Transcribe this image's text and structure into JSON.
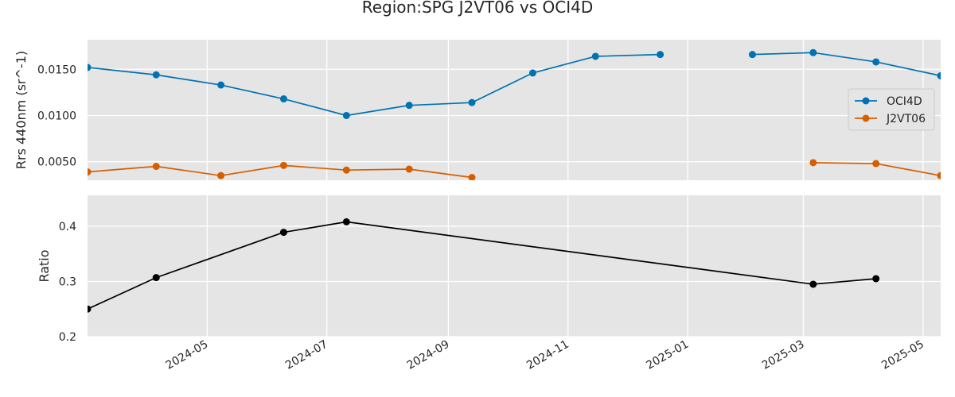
{
  "chart_data": {
    "title": "Region:SPG J2VT06 vs OCI4D",
    "x_ticks": [
      "2024-05",
      "2024-07",
      "2024-09",
      "2024-11",
      "2025-01",
      "2025-03",
      "2025-05"
    ],
    "x_range": [
      "2024-03-01",
      "2025-05-10"
    ],
    "grid": true,
    "panels": [
      {
        "type": "line",
        "ylabel": "Rrs 440nm (sr^-1)",
        "ylim": [
          0.003,
          0.0182
        ],
        "y_ticks": [
          "0.0050",
          "0.0100",
          "0.0150"
        ],
        "y_tick_values": [
          0.005,
          0.01,
          0.015
        ],
        "legend": "right",
        "series": [
          {
            "name": "OCI4D",
            "color": "#0072b2",
            "points": [
              [
                "2024-03-01",
                0.0152
              ],
              [
                "2024-04-05",
                0.0144
              ],
              [
                "2024-05-08",
                0.0133
              ],
              [
                "2024-06-09",
                0.0118
              ],
              [
                "2024-07-11",
                0.01
              ],
              [
                "2024-08-12",
                0.0111
              ],
              [
                "2024-09-13",
                0.0114
              ],
              [
                "2024-10-14",
                0.0146
              ],
              [
                "2024-11-15",
                0.0164
              ],
              [
                "2024-12-18",
                0.0166
              ],
              [
                "2025-01-19",
                null
              ],
              [
                "2025-02-03",
                0.0166
              ],
              [
                "2025-03-06",
                0.0168
              ],
              [
                "2025-04-07",
                0.0158
              ],
              [
                "2025-05-10",
                0.0143
              ]
            ]
          },
          {
            "name": "J2VT06",
            "color": "#d55e00",
            "points": [
              [
                "2024-03-01",
                0.0039
              ],
              [
                "2024-04-05",
                0.0045
              ],
              [
                "2024-05-08",
                0.0035
              ],
              [
                "2024-06-09",
                0.0046
              ],
              [
                "2024-07-11",
                0.0041
              ],
              [
                "2024-08-12",
                0.0042
              ],
              [
                "2024-09-13",
                0.0033
              ],
              [
                "2024-10-14",
                null
              ],
              [
                "2025-03-06",
                0.0049
              ],
              [
                "2025-04-07",
                0.0048
              ],
              [
                "2025-05-10",
                0.0035
              ]
            ]
          }
        ]
      },
      {
        "type": "line",
        "ylabel": "Ratio",
        "ylim": [
          0.2,
          0.456
        ],
        "y_ticks": [
          "0.2",
          "0.3",
          "0.4"
        ],
        "y_tick_values": [
          0.2,
          0.3,
          0.4
        ],
        "series": [
          {
            "color": "#000000",
            "points": [
              [
                "2024-03-01",
                0.25
              ],
              [
                "2024-04-05",
                0.307
              ],
              [
                "2024-06-09",
                0.389
              ],
              [
                "2024-07-11",
                0.408
              ],
              [
                "2025-03-06",
                0.295
              ],
              [
                "2025-04-07",
                0.305
              ]
            ]
          }
        ]
      }
    ]
  }
}
